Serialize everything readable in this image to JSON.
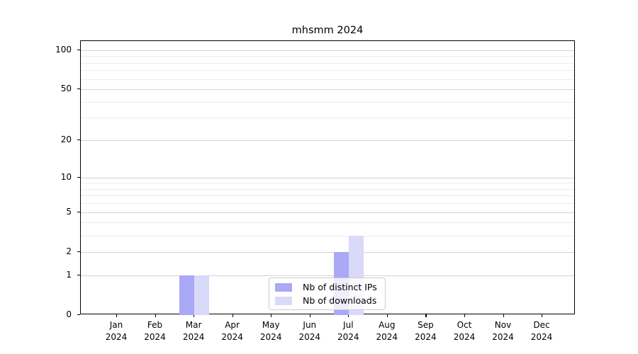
{
  "chart_data": {
    "type": "bar",
    "title": "mhsmm 2024",
    "categories": [
      "Jan 2024",
      "Feb 2024",
      "Mar 2024",
      "Apr 2024",
      "May 2024",
      "Jun 2024",
      "Jul 2024",
      "Aug 2024",
      "Sep 2024",
      "Oct 2024",
      "Nov 2024",
      "Dec 2024"
    ],
    "x_tick_months": [
      "Jan",
      "Feb",
      "Mar",
      "Apr",
      "May",
      "Jun",
      "Jul",
      "Aug",
      "Sep",
      "Oct",
      "Nov",
      "Dec"
    ],
    "x_tick_year": "2024",
    "series": [
      {
        "name": "Nb of distinct IPs",
        "color": "#a9a9f5",
        "values": [
          0,
          0,
          1,
          0,
          0,
          0,
          2,
          0,
          0,
          0,
          0,
          0
        ]
      },
      {
        "name": "Nb of downloads",
        "color": "#d9d9f9",
        "values": [
          0,
          0,
          1,
          0,
          0,
          0,
          3,
          0,
          0,
          0,
          0,
          0
        ]
      }
    ],
    "y_axis": {
      "scale": "log1p",
      "ticks": [
        0,
        1,
        2,
        5,
        10,
        20,
        50,
        100
      ],
      "minor_gridlines": [
        3,
        4,
        6,
        7,
        8,
        9,
        30,
        40,
        60,
        70,
        80,
        90
      ],
      "ymax_effective": 117
    },
    "legend_position": "bottom-center",
    "grid": true
  },
  "colors": {
    "major_grid": "#d3d3d3",
    "minor_grid": "#ececec",
    "spine": "#000000",
    "background": "#ffffff",
    "legend_border": "#cccccc",
    "bar_distinct_ips": "#a9a9f5",
    "bar_downloads": "#d9d9f9"
  }
}
